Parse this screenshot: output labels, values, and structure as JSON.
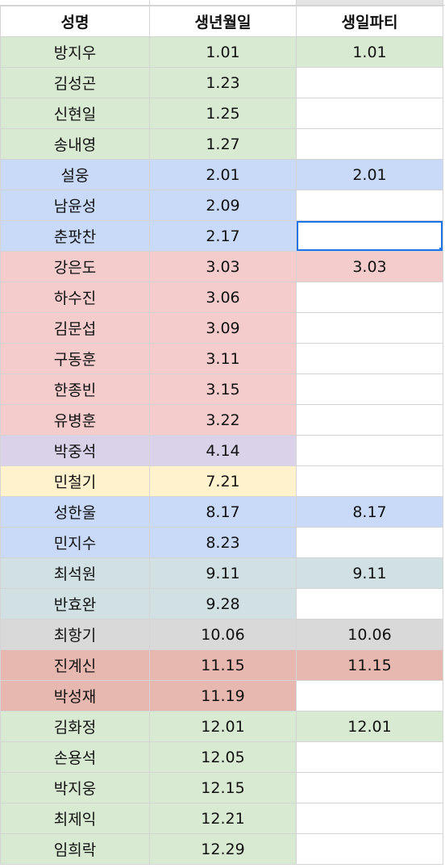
{
  "app": {
    "title": ""
  },
  "headers": [
    "성명",
    "생년월일",
    "생일파티"
  ],
  "rows": [
    {
      "name": "방지우",
      "birth": "1.01",
      "party": "1.01",
      "color": "#d9ead3",
      "partyColor": "#d9ead3"
    },
    {
      "name": "김성곤",
      "birth": "1.23",
      "party": "",
      "color": "#d9ead3",
      "partyColor": ""
    },
    {
      "name": "신현일",
      "birth": "1.25",
      "party": "",
      "color": "#d9ead3",
      "partyColor": ""
    },
    {
      "name": "송내영",
      "birth": "1.27",
      "party": "",
      "color": "#d9ead3",
      "partyColor": ""
    },
    {
      "name": "설웅",
      "birth": "2.01",
      "party": "2.01",
      "color": "#c9daf8",
      "partyColor": "#c9daf8"
    },
    {
      "name": "남윤성",
      "birth": "2.09",
      "party": "",
      "color": "#c9daf8",
      "partyColor": ""
    },
    {
      "name": "춘팟찬",
      "birth": "2.17",
      "party": "",
      "color": "#c9daf8",
      "partyColor": "",
      "active": true
    },
    {
      "name": "강은도",
      "birth": "3.03",
      "party": "3.03",
      "color": "#f4cccc",
      "partyColor": "#f4cccc"
    },
    {
      "name": "하수진",
      "birth": "3.06",
      "party": "",
      "color": "#f4cccc",
      "partyColor": ""
    },
    {
      "name": "김문섭",
      "birth": "3.09",
      "party": "",
      "color": "#f4cccc",
      "partyColor": ""
    },
    {
      "name": "구동훈",
      "birth": "3.11",
      "party": "",
      "color": "#f4cccc",
      "partyColor": ""
    },
    {
      "name": "한종빈",
      "birth": "3.15",
      "party": "",
      "color": "#f4cccc",
      "partyColor": ""
    },
    {
      "name": "유병훈",
      "birth": "3.22",
      "party": "",
      "color": "#f4cccc",
      "partyColor": ""
    },
    {
      "name": "박중석",
      "birth": "4.14",
      "party": "",
      "color": "#d9d2e9",
      "partyColor": ""
    },
    {
      "name": "민철기",
      "birth": "7.21",
      "party": "",
      "color": "#fff2cc",
      "partyColor": ""
    },
    {
      "name": "성한울",
      "birth": "8.17",
      "party": "8.17",
      "color": "#c9daf8",
      "partyColor": "#c9daf8"
    },
    {
      "name": "민지수",
      "birth": "8.23",
      "party": "",
      "color": "#c9daf8",
      "partyColor": ""
    },
    {
      "name": "최석원",
      "birth": "9.11",
      "party": "9.11",
      "color": "#d0e0e3",
      "partyColor": "#d0e0e3"
    },
    {
      "name": "반효완",
      "birth": "9.28",
      "party": "",
      "color": "#d0e0e3",
      "partyColor": ""
    },
    {
      "name": "최항기",
      "birth": "10.06",
      "party": "10.06",
      "color": "#d9d9d9",
      "partyColor": "#d9d9d9"
    },
    {
      "name": "진계신",
      "birth": "11.15",
      "party": "11.15",
      "color": "#e6b8af",
      "partyColor": "#e6b8af"
    },
    {
      "name": "박성재",
      "birth": "11.19",
      "party": "",
      "color": "#e6b8af",
      "partyColor": ""
    },
    {
      "name": "김화정",
      "birth": "12.01",
      "party": "12.01",
      "color": "#d9ead3",
      "partyColor": "#d9ead3"
    },
    {
      "name": "손용석",
      "birth": "12.05",
      "party": "",
      "color": "#d9ead3",
      "partyColor": ""
    },
    {
      "name": "박지웅",
      "birth": "12.15",
      "party": "",
      "color": "#d9ead3",
      "partyColor": ""
    },
    {
      "name": "최제익",
      "birth": "12.21",
      "party": "",
      "color": "#d9ead3",
      "partyColor": ""
    },
    {
      "name": "임희락",
      "birth": "12.29",
      "party": "",
      "color": "#d9ead3",
      "partyColor": ""
    }
  ],
  "colors": {
    "selection": "#1a73e8",
    "gridline": "#d4d4d4"
  }
}
